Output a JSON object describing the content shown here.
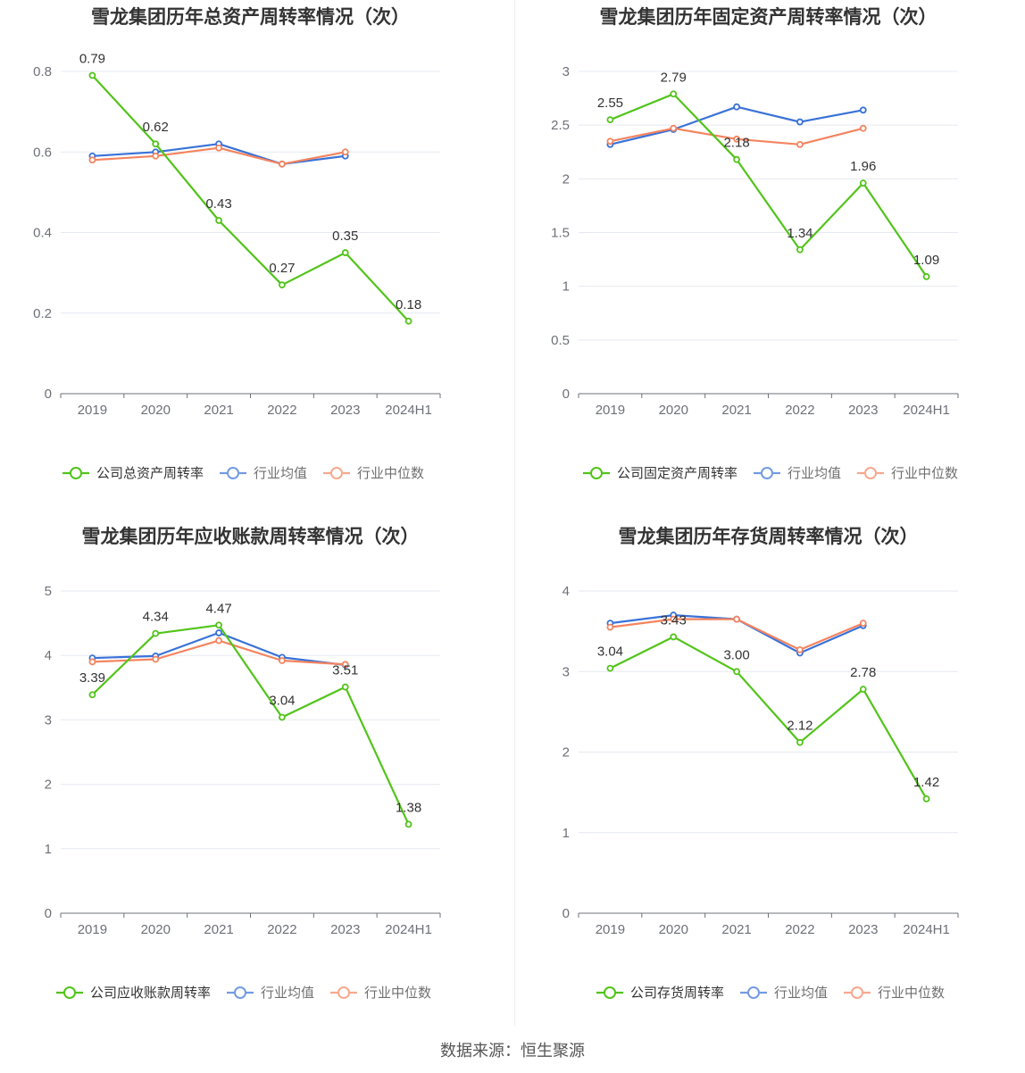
{
  "source_text": "数据来源：恒生聚源",
  "chart_data": [
    {
      "type": "line",
      "title": "雪龙集团历年总资产周转率情况（次）",
      "categories": [
        "2019",
        "2020",
        "2021",
        "2022",
        "2023",
        "2024H1"
      ],
      "ylim": [
        0,
        0.8
      ],
      "yticks": [
        0,
        0.2,
        0.4,
        0.6,
        0.8
      ],
      "ytick_labels": [
        "0",
        "0.2",
        "0.4",
        "0.6",
        "0.8"
      ],
      "series": [
        {
          "name": "公司总资产周转率",
          "color": "#52c41a",
          "values": [
            0.79,
            0.62,
            0.43,
            0.27,
            0.35,
            0.18
          ],
          "labels": [
            "0.79",
            "0.62",
            "0.43",
            "0.27",
            "0.35",
            "0.18"
          ]
        },
        {
          "name": "行业均值",
          "color": "#3a72d8",
          "values": [
            0.59,
            0.6,
            0.62,
            0.57,
            0.59,
            null
          ]
        },
        {
          "name": "行业中位数",
          "color": "#f4845f",
          "values": [
            0.58,
            0.59,
            0.61,
            0.57,
            0.6,
            null
          ]
        }
      ]
    },
    {
      "type": "line",
      "title": "雪龙集团历年固定资产周转率情况（次）",
      "categories": [
        "2019",
        "2020",
        "2021",
        "2022",
        "2023",
        "2024H1"
      ],
      "ylim": [
        0,
        3
      ],
      "yticks": [
        0,
        0.5,
        1,
        1.5,
        2,
        2.5,
        3
      ],
      "ytick_labels": [
        "0",
        "0.5",
        "1",
        "1.5",
        "2",
        "2.5",
        "3"
      ],
      "series": [
        {
          "name": "公司固定资产周转率",
          "color": "#52c41a",
          "values": [
            2.55,
            2.79,
            2.18,
            1.34,
            1.96,
            1.09
          ],
          "labels": [
            "2.55",
            "2.79",
            "2.18",
            "1.34",
            "1.96",
            "1.09"
          ]
        },
        {
          "name": "行业均值",
          "color": "#3a72d8",
          "values": [
            2.32,
            2.46,
            2.67,
            2.53,
            2.64,
            null
          ]
        },
        {
          "name": "行业中位数",
          "color": "#f4845f",
          "values": [
            2.35,
            2.47,
            2.37,
            2.32,
            2.47,
            null
          ]
        }
      ]
    },
    {
      "type": "line",
      "title": "雪龙集团历年应收账款周转率情况（次）",
      "categories": [
        "2019",
        "2020",
        "2021",
        "2022",
        "2023",
        "2024H1"
      ],
      "ylim": [
        0,
        5
      ],
      "yticks": [
        0,
        1,
        2,
        3,
        4,
        5
      ],
      "ytick_labels": [
        "0",
        "1",
        "2",
        "3",
        "4",
        "5"
      ],
      "series": [
        {
          "name": "公司应收账款周转率",
          "color": "#52c41a",
          "values": [
            3.39,
            4.34,
            4.47,
            3.04,
            3.51,
            1.38
          ],
          "labels": [
            "3.39",
            "4.34",
            "4.47",
            "3.04",
            "3.51",
            "1.38"
          ]
        },
        {
          "name": "行业均值",
          "color": "#3a72d8",
          "values": [
            3.96,
            3.99,
            4.35,
            3.97,
            3.85,
            null
          ]
        },
        {
          "name": "行业中位数",
          "color": "#f4845f",
          "values": [
            3.9,
            3.94,
            4.23,
            3.92,
            3.86,
            null
          ]
        }
      ]
    },
    {
      "type": "line",
      "title": "雪龙集团历年存货周转率情况（次）",
      "categories": [
        "2019",
        "2020",
        "2021",
        "2022",
        "2023",
        "2024H1"
      ],
      "ylim": [
        0,
        4
      ],
      "yticks": [
        0,
        1,
        2,
        3,
        4
      ],
      "ytick_labels": [
        "0",
        "1",
        "2",
        "3",
        "4"
      ],
      "series": [
        {
          "name": "公司存货周转率",
          "color": "#52c41a",
          "values": [
            3.04,
            3.43,
            3.0,
            2.12,
            2.78,
            1.42
          ],
          "labels": [
            "3.04",
            "3.43",
            "3.00",
            "2.12",
            "2.78",
            "1.42"
          ]
        },
        {
          "name": "行业均值",
          "color": "#3a72d8",
          "values": [
            3.6,
            3.7,
            3.65,
            3.23,
            3.57,
            null
          ]
        },
        {
          "name": "行业中位数",
          "color": "#f4845f",
          "values": [
            3.55,
            3.65,
            3.65,
            3.27,
            3.6,
            null
          ]
        }
      ]
    }
  ]
}
